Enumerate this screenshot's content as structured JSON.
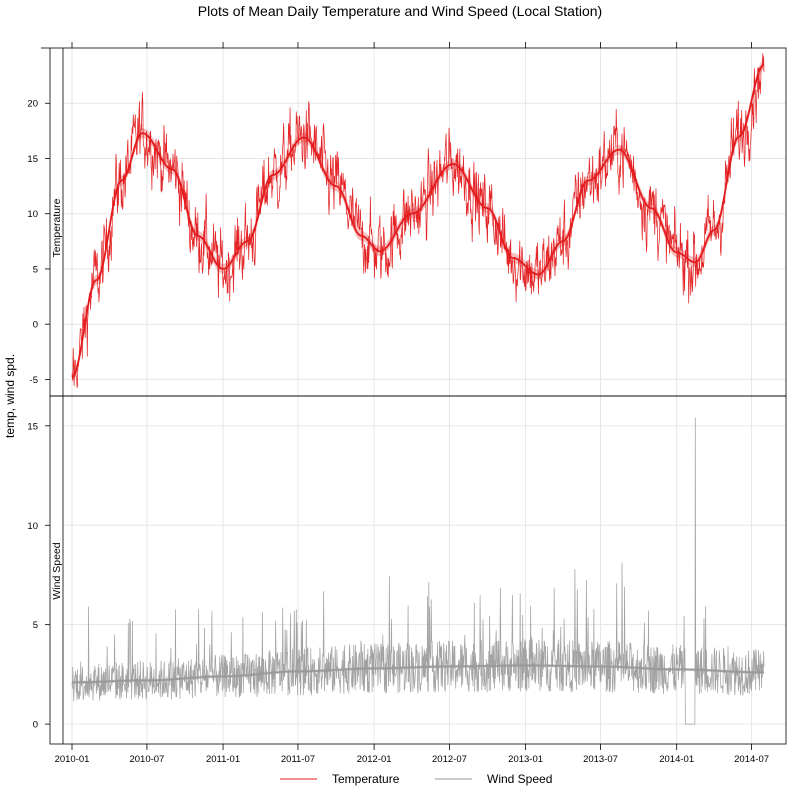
{
  "chart_data": {
    "type": "line",
    "title": "Plots of Mean Daily Temperature and Wind Speed (Local Station)",
    "ylabel": "temp, wind spd.",
    "xlabel": "",
    "x_tick_labels": [
      "2010-01",
      "2010-07",
      "2011-01",
      "2011-07",
      "2012-01",
      "2012-07",
      "2013-01",
      "2013-07",
      "2014-01",
      "2014-07"
    ],
    "x_range": [
      "2010-01-01",
      "2014-07-31"
    ],
    "grid": true,
    "legend_position": "bottom",
    "panels": [
      {
        "name": "Temperature",
        "color": "#e41a1c",
        "ylim": [
          -6.5,
          25
        ],
        "y_ticks": [
          -5,
          0,
          5,
          10,
          15,
          20
        ],
        "smooth": [
          {
            "x": "2010-01-01",
            "y": -4.8
          },
          {
            "x": "2010-03-01",
            "y": 4.0
          },
          {
            "x": "2010-05-01",
            "y": 13.0
          },
          {
            "x": "2010-06-20",
            "y": 17.3
          },
          {
            "x": "2010-09-01",
            "y": 14.0
          },
          {
            "x": "2010-11-01",
            "y": 8.0
          },
          {
            "x": "2011-01-01",
            "y": 5.0
          },
          {
            "x": "2011-03-01",
            "y": 7.5
          },
          {
            "x": "2011-05-01",
            "y": 13.5
          },
          {
            "x": "2011-07-15",
            "y": 16.9
          },
          {
            "x": "2011-10-01",
            "y": 12.5
          },
          {
            "x": "2011-12-01",
            "y": 8.0
          },
          {
            "x": "2012-01-15",
            "y": 6.6
          },
          {
            "x": "2012-04-01",
            "y": 10.0
          },
          {
            "x": "2012-07-10",
            "y": 14.5
          },
          {
            "x": "2012-10-01",
            "y": 10.5
          },
          {
            "x": "2012-12-01",
            "y": 6.0
          },
          {
            "x": "2013-02-01",
            "y": 4.5
          },
          {
            "x": "2013-04-01",
            "y": 7.5
          },
          {
            "x": "2013-06-01",
            "y": 13.0
          },
          {
            "x": "2013-08-15",
            "y": 15.8
          },
          {
            "x": "2013-11-01",
            "y": 10.5
          },
          {
            "x": "2014-01-01",
            "y": 6.5
          },
          {
            "x": "2014-02-15",
            "y": 5.6
          },
          {
            "x": "2014-04-01",
            "y": 8.5
          },
          {
            "x": "2014-06-01",
            "y": 17.0
          },
          {
            "x": "2014-07-31",
            "y": 23.5
          }
        ]
      },
      {
        "name": "Wind Speed",
        "color": "#999999",
        "ylim": [
          -1,
          16.5
        ],
        "y_ticks": [
          0,
          5,
          10,
          15
        ],
        "smooth": [
          {
            "x": "2010-01-01",
            "y": 2.1
          },
          {
            "x": "2010-07-01",
            "y": 2.2
          },
          {
            "x": "2011-01-01",
            "y": 2.4
          },
          {
            "x": "2011-07-01",
            "y": 2.65
          },
          {
            "x": "2012-01-01",
            "y": 2.8
          },
          {
            "x": "2012-07-01",
            "y": 2.9
          },
          {
            "x": "2013-01-01",
            "y": 2.95
          },
          {
            "x": "2013-07-01",
            "y": 2.9
          },
          {
            "x": "2014-01-01",
            "y": 2.75
          },
          {
            "x": "2014-07-31",
            "y": 2.6
          }
        ],
        "notable_values": [
          {
            "x": "2014-02-15",
            "y": 15.4
          },
          {
            "x": "2014-01-25",
            "y": 0.0
          }
        ]
      }
    ],
    "legend": [
      {
        "label": "Temperature",
        "color": "#e41a1c"
      },
      {
        "label": "Wind Speed",
        "color": "#999999"
      }
    ]
  }
}
